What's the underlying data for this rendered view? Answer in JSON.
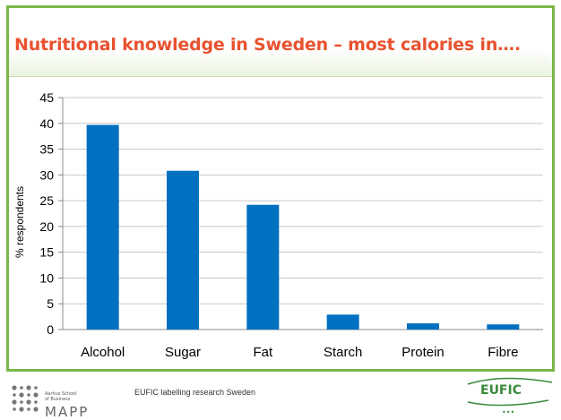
{
  "title": "Nutritional knowledge in Sweden – most calories in….",
  "footer": {
    "caption": "EUFIC labelling research Sweden",
    "aarhus_line1": "Aarhus School",
    "aarhus_line2": "of Business",
    "mapp": "MAPP",
    "eufic": "EUFIC"
  },
  "colors": {
    "accent_title": "#e8522f",
    "frame_green": "#7ab648",
    "bar_blue": "#0070c0"
  },
  "chart_data": {
    "type": "bar",
    "categories": [
      "Alcohol",
      "Sugar",
      "Fat",
      "Starch",
      "Protein",
      "Fibre"
    ],
    "values": [
      39.7,
      30.8,
      24.2,
      2.9,
      1.2,
      1.0
    ],
    "title": "",
    "xlabel": "",
    "ylabel": "% respondents",
    "ylim": [
      0,
      45
    ],
    "yticks": [
      0,
      5,
      10,
      15,
      20,
      25,
      30,
      35,
      40,
      45
    ],
    "grid": true,
    "legend": "none"
  }
}
